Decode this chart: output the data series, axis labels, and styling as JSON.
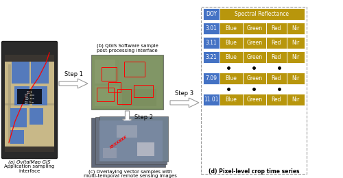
{
  "title_b": "(b) QGIS Software sample\npost-processing interface",
  "title_c": "(c) Overlaying vector samples with\nmulti-temporal remote sensing images",
  "title_a_line1": "(a) OvitalMap GIS",
  "title_a_line2": "Application sampling",
  "title_a_line3": "interface",
  "title_d": "(d) Pixel-level crop time series",
  "step1": "Step 1",
  "step2": "Step 2",
  "step3": "Step 3",
  "blue_color": "#4472C4",
  "gold_color": "#B8960C",
  "header_row": [
    "DOY",
    "Spectral Reflectance"
  ],
  "rows": [
    {
      "doy": "3.01",
      "bands": [
        "Blue",
        "Green",
        "Red",
        "Nir"
      ]
    },
    {
      "doy": "3.11",
      "bands": [
        "Blue",
        "Green",
        "Red",
        "Nir"
      ]
    },
    {
      "doy": "3.21",
      "bands": [
        "Blue",
        "Green",
        "Red",
        "Nir"
      ]
    },
    {
      "doy": "7.09",
      "bands": [
        "Blue",
        "Green",
        "Red",
        "Nir"
      ]
    },
    {
      "doy": "11.01",
      "bands": [
        "Blue",
        "Green",
        "Red",
        "Nir"
      ]
    }
  ],
  "dots_after_rows": [
    2,
    3
  ],
  "bg_color": "#ffffff",
  "dashed_box_color": "#999999"
}
